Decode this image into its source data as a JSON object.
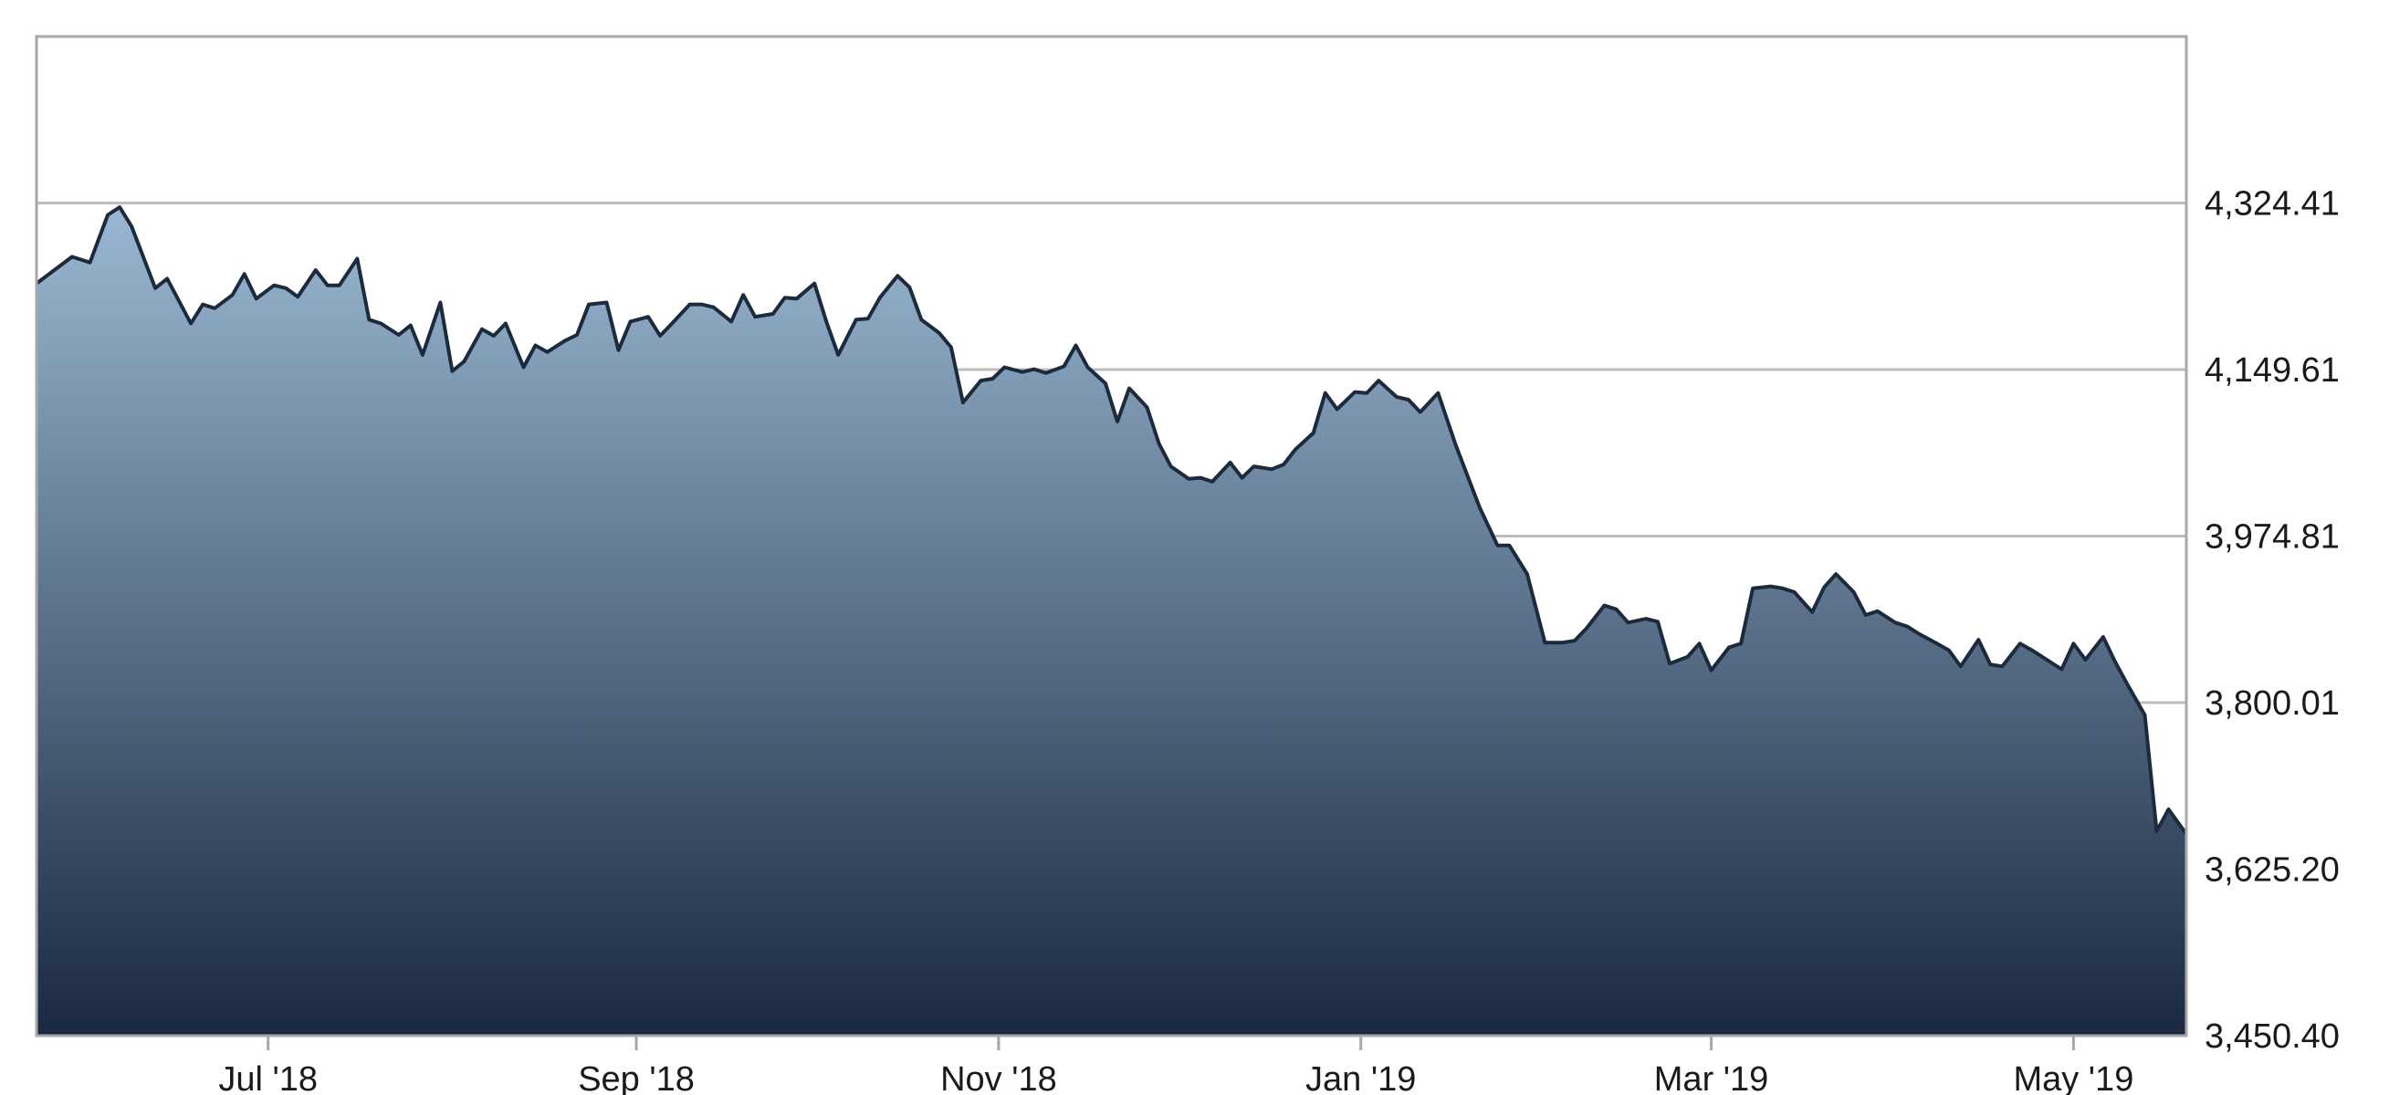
{
  "chart_data": {
    "type": "area",
    "title": "",
    "xlabel": "",
    "ylabel": "",
    "x_ticks": [
      "Jul '18",
      "Sep '18",
      "Nov '18",
      "Jan '19",
      "Mar '19",
      "May '19"
    ],
    "x_tick_dates": [
      "2018-07-01",
      "2018-09-01",
      "2018-11-01",
      "2019-01-01",
      "2019-03-01",
      "2019-05-01"
    ],
    "x_range": [
      "2018-05-23",
      "2019-05-20"
    ],
    "y_ticks": [
      "3,450.40",
      "3,625.20",
      "3,800.01",
      "3,974.81",
      "4,149.61",
      "4,324.41"
    ],
    "y_tick_values": [
      3450.4,
      3625.2,
      3800.01,
      3974.81,
      4149.61,
      4324.41
    ],
    "ylim": [
      3450.4,
      4499.21
    ],
    "y_axis_side": "right",
    "grid": true,
    "legend": "none",
    "colors": {
      "line": "#1c2a3e",
      "fill_top": "#9ab8d3",
      "fill_bottom": "#1a2840",
      "grid": "#bdbdbd",
      "frame": "#a8a8a8"
    },
    "series": [
      {
        "points": [
          [
            "2018-05-23",
            4240
          ],
          [
            "2018-05-29",
            4268
          ],
          [
            "2018-06-01",
            4262
          ],
          [
            "2018-06-04",
            4312
          ],
          [
            "2018-06-06",
            4320
          ],
          [
            "2018-06-08",
            4300
          ],
          [
            "2018-06-12",
            4235
          ],
          [
            "2018-06-14",
            4245
          ],
          [
            "2018-06-18",
            4198
          ],
          [
            "2018-06-20",
            4218
          ],
          [
            "2018-06-22",
            4214
          ],
          [
            "2018-06-25",
            4228
          ],
          [
            "2018-06-27",
            4250
          ],
          [
            "2018-06-29",
            4224
          ],
          [
            "2018-07-02",
            4238
          ],
          [
            "2018-07-04",
            4235
          ],
          [
            "2018-07-06",
            4226
          ],
          [
            "2018-07-09",
            4254
          ],
          [
            "2018-07-11",
            4238
          ],
          [
            "2018-07-13",
            4238
          ],
          [
            "2018-07-16",
            4266
          ],
          [
            "2018-07-18",
            4202
          ],
          [
            "2018-07-20",
            4198
          ],
          [
            "2018-07-23",
            4186
          ],
          [
            "2018-07-25",
            4196
          ],
          [
            "2018-07-27",
            4165
          ],
          [
            "2018-07-30",
            4220
          ],
          [
            "2018-08-01",
            4148
          ],
          [
            "2018-08-03",
            4158
          ],
          [
            "2018-08-06",
            4192
          ],
          [
            "2018-08-08",
            4185
          ],
          [
            "2018-08-10",
            4198
          ],
          [
            "2018-08-13",
            4152
          ],
          [
            "2018-08-15",
            4175
          ],
          [
            "2018-08-17",
            4168
          ],
          [
            "2018-08-20",
            4180
          ],
          [
            "2018-08-22",
            4186
          ],
          [
            "2018-08-24",
            4218
          ],
          [
            "2018-08-27",
            4220
          ],
          [
            "2018-08-29",
            4170
          ],
          [
            "2018-08-31",
            4200
          ],
          [
            "2018-09-03",
            4205
          ],
          [
            "2018-09-05",
            4185
          ],
          [
            "2018-09-07",
            4198
          ],
          [
            "2018-09-10",
            4218
          ],
          [
            "2018-09-12",
            4218
          ],
          [
            "2018-09-14",
            4215
          ],
          [
            "2018-09-17",
            4200
          ],
          [
            "2018-09-19",
            4228
          ],
          [
            "2018-09-21",
            4205
          ],
          [
            "2018-09-24",
            4208
          ],
          [
            "2018-09-26",
            4225
          ],
          [
            "2018-09-28",
            4224
          ],
          [
            "2018-10-01",
            4240
          ],
          [
            "2018-10-03",
            4200
          ],
          [
            "2018-10-05",
            4165
          ],
          [
            "2018-10-08",
            4202
          ],
          [
            "2018-10-10",
            4203
          ],
          [
            "2018-10-12",
            4225
          ],
          [
            "2018-10-15",
            4248
          ],
          [
            "2018-10-17",
            4236
          ],
          [
            "2018-10-19",
            4202
          ],
          [
            "2018-10-22",
            4188
          ],
          [
            "2018-10-24",
            4173
          ],
          [
            "2018-10-26",
            4115
          ],
          [
            "2018-10-29",
            4138
          ],
          [
            "2018-10-31",
            4140
          ],
          [
            "2018-11-02",
            4152
          ],
          [
            "2018-11-05",
            4147
          ],
          [
            "2018-11-07",
            4150
          ],
          [
            "2018-11-09",
            4146
          ],
          [
            "2018-11-12",
            4153
          ],
          [
            "2018-11-14",
            4175
          ],
          [
            "2018-11-16",
            4152
          ],
          [
            "2018-11-19",
            4135
          ],
          [
            "2018-11-21",
            4095
          ],
          [
            "2018-11-23",
            4130
          ],
          [
            "2018-11-26",
            4110
          ],
          [
            "2018-11-28",
            4072
          ],
          [
            "2018-11-30",
            4048
          ],
          [
            "2018-12-03",
            4035
          ],
          [
            "2018-12-05",
            4036
          ],
          [
            "2018-12-07",
            4032
          ],
          [
            "2018-12-10",
            4052
          ],
          [
            "2018-12-12",
            4036
          ],
          [
            "2018-12-14",
            4048
          ],
          [
            "2018-12-17",
            4045
          ],
          [
            "2018-12-19",
            4050
          ],
          [
            "2018-12-21",
            4066
          ],
          [
            "2018-12-24",
            4083
          ],
          [
            "2018-12-26",
            4125
          ],
          [
            "2018-12-28",
            4108
          ],
          [
            "2018-12-31",
            4126
          ],
          [
            "2019-01-02",
            4125
          ],
          [
            "2019-01-04",
            4138
          ],
          [
            "2019-01-07",
            4121
          ],
          [
            "2019-01-09",
            4118
          ],
          [
            "2019-01-11",
            4105
          ],
          [
            "2019-01-14",
            4125
          ],
          [
            "2019-01-17",
            4070
          ],
          [
            "2019-01-21",
            4005
          ],
          [
            "2019-01-24",
            3965
          ],
          [
            "2019-01-26",
            3965
          ],
          [
            "2019-01-29",
            3935
          ],
          [
            "2019-02-01",
            3863
          ],
          [
            "2019-02-04",
            3863
          ],
          [
            "2019-02-06",
            3865
          ],
          [
            "2019-02-08",
            3878
          ],
          [
            "2019-02-11",
            3902
          ],
          [
            "2019-02-13",
            3898
          ],
          [
            "2019-02-15",
            3884
          ],
          [
            "2019-02-18",
            3888
          ],
          [
            "2019-02-20",
            3885
          ],
          [
            "2019-02-22",
            3841
          ],
          [
            "2019-02-25",
            3848
          ],
          [
            "2019-02-27",
            3862
          ],
          [
            "2019-03-01",
            3834
          ],
          [
            "2019-03-04",
            3858
          ],
          [
            "2019-03-06",
            3862
          ],
          [
            "2019-03-08",
            3920
          ],
          [
            "2019-03-11",
            3922
          ],
          [
            "2019-03-13",
            3920
          ],
          [
            "2019-03-15",
            3916
          ],
          [
            "2019-03-18",
            3895
          ],
          [
            "2019-03-20",
            3921
          ],
          [
            "2019-03-22",
            3935
          ],
          [
            "2019-03-25",
            3916
          ],
          [
            "2019-03-27",
            3892
          ],
          [
            "2019-03-29",
            3896
          ],
          [
            "2019-04-01",
            3884
          ],
          [
            "2019-04-03",
            3880
          ],
          [
            "2019-04-05",
            3872
          ],
          [
            "2019-04-08",
            3862
          ],
          [
            "2019-04-10",
            3855
          ],
          [
            "2019-04-12",
            3838
          ],
          [
            "2019-04-15",
            3866
          ],
          [
            "2019-04-17",
            3840
          ],
          [
            "2019-04-19",
            3838
          ],
          [
            "2019-04-22",
            3862
          ],
          [
            "2019-04-24",
            3855
          ],
          [
            "2019-04-26",
            3847
          ],
          [
            "2019-04-29",
            3835
          ],
          [
            "2019-05-01",
            3862
          ],
          [
            "2019-05-03",
            3845
          ],
          [
            "2019-05-06",
            3869
          ],
          [
            "2019-05-08",
            3843
          ],
          [
            "2019-05-10",
            3820
          ],
          [
            "2019-05-13",
            3787
          ],
          [
            "2019-05-15",
            3665
          ],
          [
            "2019-05-17",
            3688
          ],
          [
            "2019-05-20",
            3662
          ]
        ]
      }
    ]
  }
}
